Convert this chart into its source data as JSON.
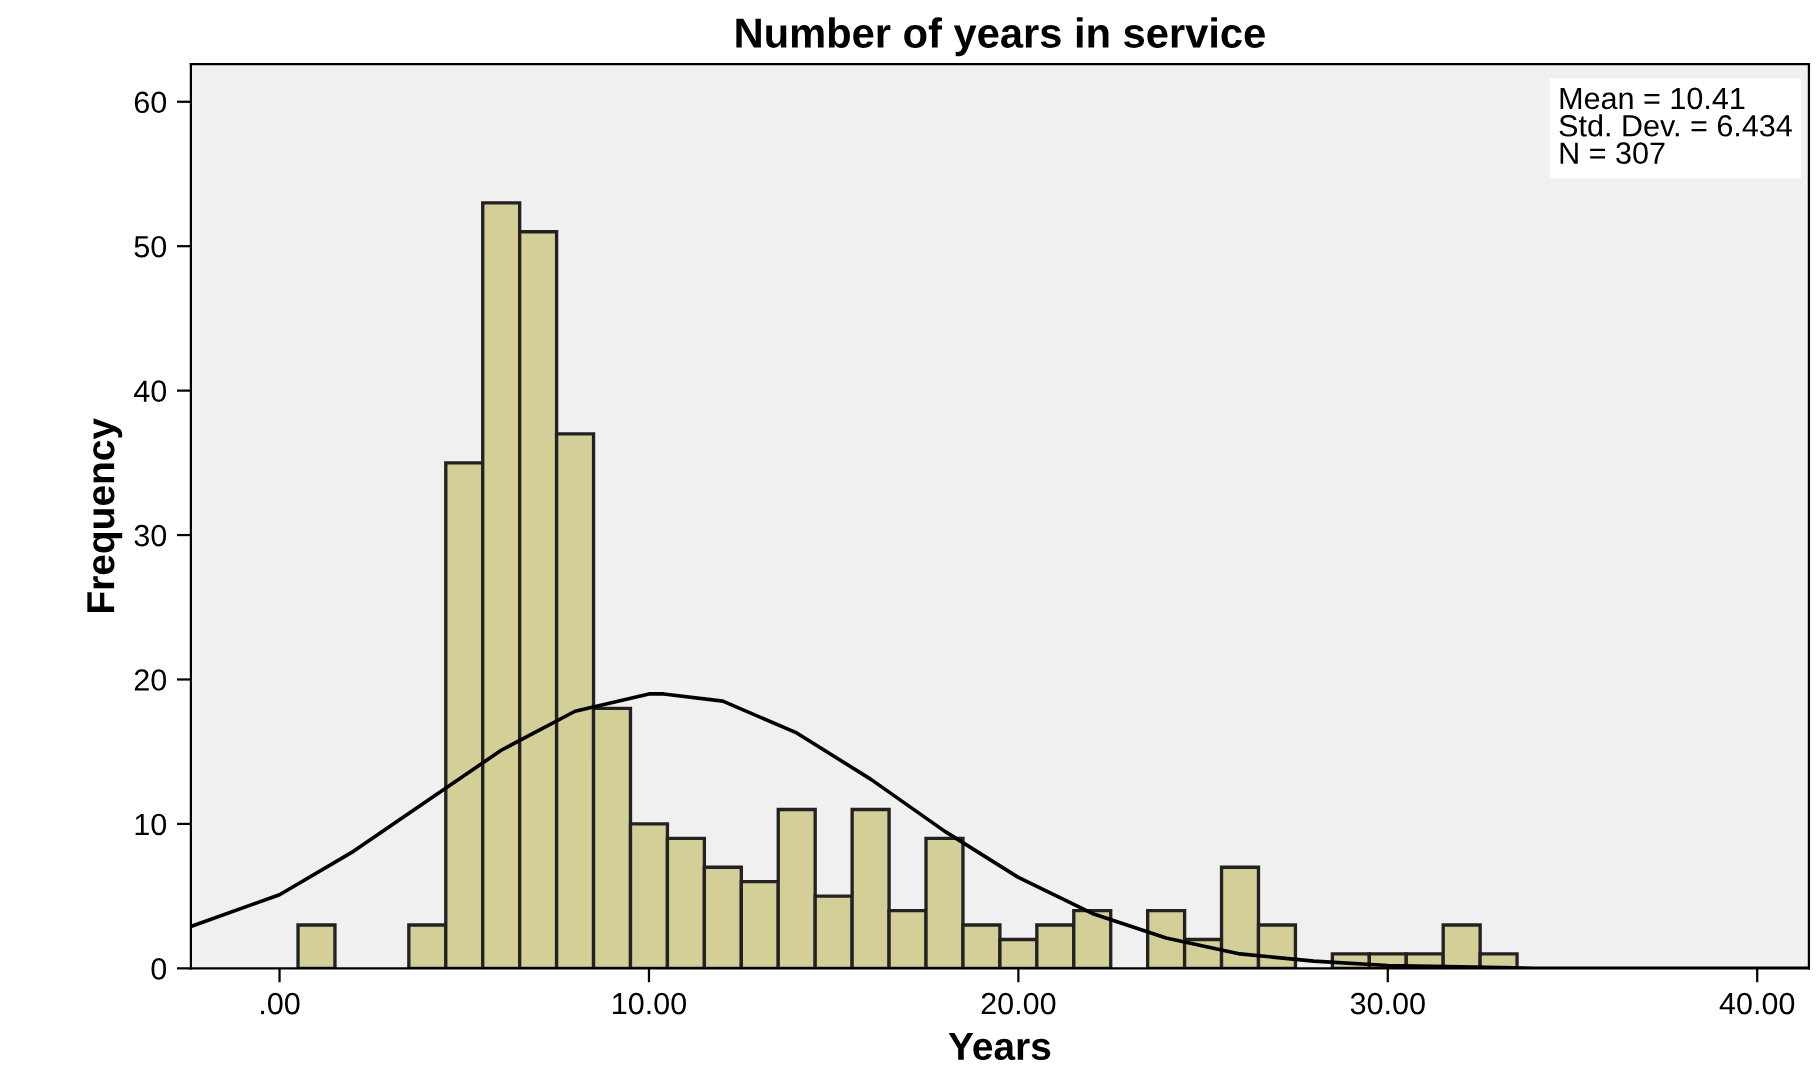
{
  "chart_data": {
    "type": "histogram",
    "title": "Number of years in service",
    "xlabel": "Years",
    "ylabel": "Frequency",
    "bins": [
      0.5,
      1.5,
      2.5,
      3.5,
      4.5,
      5.5,
      6.5,
      7.5,
      8.5,
      9.5,
      10.5,
      11.5,
      12.5,
      13.5,
      14.5,
      15.5,
      16.5,
      17.5,
      18.5,
      19.5,
      20.5,
      21.5,
      22.5,
      23.5,
      24.5,
      25.5,
      26.5,
      27.5,
      28.5,
      29.5,
      30.5,
      31.5,
      32.5,
      33.5
    ],
    "values": [
      3,
      0,
      0,
      3,
      35,
      53,
      51,
      37,
      18,
      10,
      9,
      7,
      6,
      11,
      5,
      11,
      4,
      9,
      3,
      2,
      3,
      4,
      0,
      4,
      2,
      7,
      3,
      0,
      1,
      1,
      1,
      3,
      1
    ],
    "color": "#d4cf96",
    "series": [
      {
        "type": "line",
        "color": "#000000",
        "x": [
          -2.4,
          0,
          2,
          4,
          6,
          8,
          10,
          10.4,
          12,
          14,
          16,
          18,
          20,
          22,
          24,
          26,
          28,
          30,
          32,
          34,
          36,
          38,
          40,
          41.4
        ],
        "values": [
          2.9,
          5.1,
          8.1,
          11.6,
          15.1,
          17.8,
          19,
          19,
          18.5,
          16.3,
          13.1,
          9.5,
          6.3,
          3.8,
          2.1,
          1,
          0.5,
          0.2,
          0.1,
          0,
          0,
          0,
          0,
          0
        ]
      }
    ],
    "xlim": [
      -2.4,
      41.4
    ],
    "ylim": [
      0,
      62.6
    ],
    "xticks": [
      {
        "value": 0,
        "label": ".00"
      },
      {
        "value": 10,
        "label": "10.00"
      },
      {
        "value": 20,
        "label": "20.00"
      },
      {
        "value": 30,
        "label": "30.00"
      },
      {
        "value": 40,
        "label": "40.00"
      }
    ],
    "yticks": [
      0,
      10,
      20,
      30,
      40,
      50,
      60
    ],
    "annotations": [
      "Mean = 10.41\nStd. Dev. = 6.434\nN = 307"
    ],
    "grid": false,
    "legend": false
  }
}
